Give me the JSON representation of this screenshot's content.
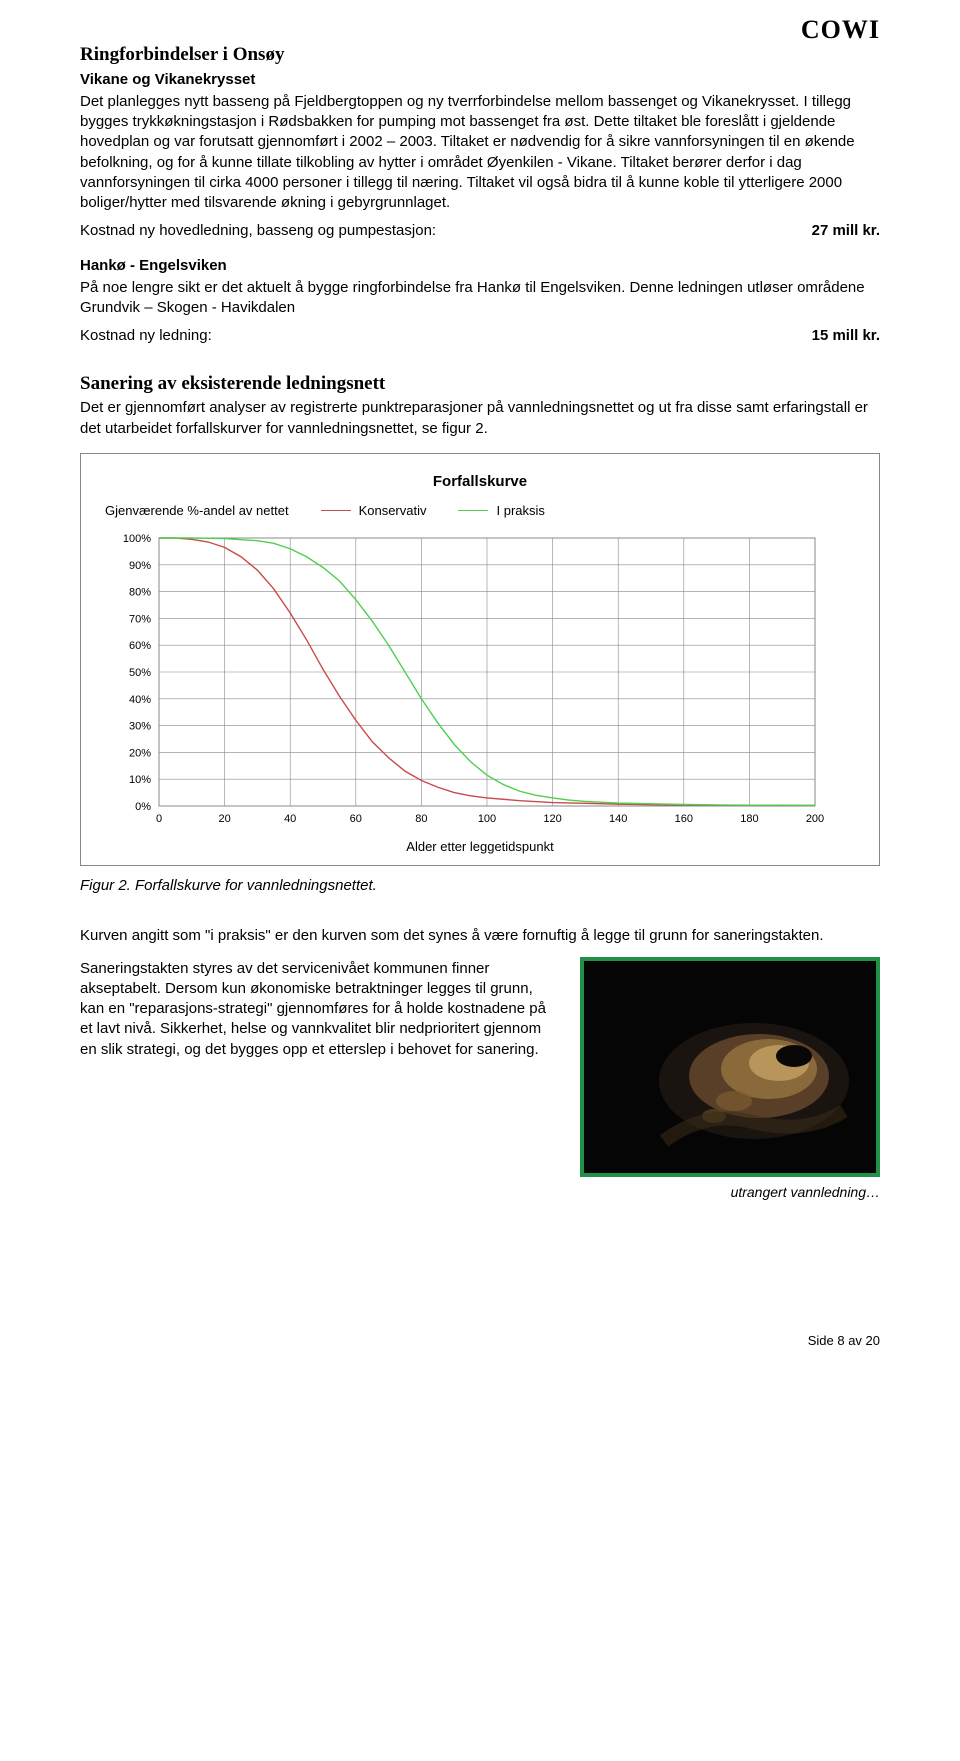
{
  "logo": "COWI",
  "sec1": {
    "title": "Ringforbindelser i Onsøy",
    "subhead": "Vikane og Vikanekrysset",
    "p1": "Det planlegges nytt basseng på Fjeldbergtoppen og ny tverrforbindelse mellom bassenget og Vikanekrysset. I tillegg bygges trykkøkningstasjon i Rødsbakken for pumping mot bassenget fra øst. Dette tiltaket ble foreslått i gjeldende hovedplan og var forutsatt gjennomført i 2002 – 2003. Tiltaket er nødvendig for å sikre vannforsyningen til en økende befolkning, og for å kunne tillate tilkobling av hytter i området Øyenkilen - Vikane. Tiltaket berører derfor i dag vannforsyningen til cirka 4000 personer i tillegg til næring. Tiltaket vil også bidra til å kunne koble til ytterligere 2000 boliger/hytter med tilsvarende økning i gebyrgrunnlaget.",
    "cost_label": "Kostnad ny hovedledning, basseng og pumpestasjon:",
    "cost_value": "27 mill kr."
  },
  "sec2": {
    "subhead": "Hankø - Engelsviken",
    "p1": "På noe lengre sikt er det aktuelt å bygge ringforbindelse fra Hankø til Engelsviken. Denne ledningen utløser områdene Grundvik – Skogen - Havikdalen",
    "cost_label": "Kostnad ny ledning:",
    "cost_value": "15 mill kr."
  },
  "sec3": {
    "title": "Sanering av eksisterende ledningsnett",
    "p1": "Det er gjennomført analyser av registrerte punktreparasjoner på vannledningsnettet og ut fra disse samt erfaringstall er det utarbeidet forfallskurver for vannledningsnettet, se figur 2."
  },
  "chart": {
    "title": "Forfallskurve",
    "y_label": "Gjenværende %-andel av nettet",
    "x_label": "Alder etter leggetidspunkt",
    "legend": [
      "Konservativ",
      "I praksis"
    ],
    "series_colors": [
      "#c94a4a",
      "#4fcf4f"
    ],
    "x_min": 0,
    "x_max": 200,
    "y_min": 0,
    "y_max": 100,
    "x_ticks": [
      0,
      20,
      40,
      60,
      80,
      100,
      120,
      140,
      160,
      180,
      200
    ],
    "y_ticks": [
      "0%",
      "10%",
      "20%",
      "30%",
      "40%",
      "50%",
      "60%",
      "70%",
      "80%",
      "90%",
      "100%"
    ],
    "grid_color": "#888",
    "font_size_ticks": 11,
    "plot_bg": "#ffffff",
    "konservativ_xy": [
      [
        0,
        100
      ],
      [
        5,
        100
      ],
      [
        10,
        99.5
      ],
      [
        15,
        98.5
      ],
      [
        20,
        96.5
      ],
      [
        25,
        93
      ],
      [
        30,
        88
      ],
      [
        35,
        81
      ],
      [
        40,
        72
      ],
      [
        45,
        62
      ],
      [
        50,
        51
      ],
      [
        55,
        41
      ],
      [
        60,
        32
      ],
      [
        65,
        24
      ],
      [
        70,
        18
      ],
      [
        75,
        13
      ],
      [
        80,
        9.5
      ],
      [
        85,
        7
      ],
      [
        90,
        5
      ],
      [
        95,
        3.8
      ],
      [
        100,
        3
      ],
      [
        110,
        2
      ],
      [
        120,
        1.3
      ],
      [
        130,
        1
      ],
      [
        140,
        0.7
      ],
      [
        150,
        0.5
      ],
      [
        160,
        0.4
      ],
      [
        170,
        0.3
      ],
      [
        180,
        0.3
      ],
      [
        190,
        0.2
      ],
      [
        200,
        0.2
      ]
    ],
    "ipraksis_xy": [
      [
        0,
        100
      ],
      [
        10,
        100
      ],
      [
        20,
        99.8
      ],
      [
        30,
        99
      ],
      [
        35,
        98
      ],
      [
        40,
        96
      ],
      [
        45,
        93
      ],
      [
        50,
        89
      ],
      [
        55,
        84
      ],
      [
        60,
        77
      ],
      [
        65,
        69
      ],
      [
        70,
        60
      ],
      [
        75,
        50
      ],
      [
        80,
        40
      ],
      [
        85,
        31
      ],
      [
        90,
        23
      ],
      [
        95,
        16.5
      ],
      [
        100,
        11.5
      ],
      [
        105,
        8
      ],
      [
        110,
        5.5
      ],
      [
        115,
        4
      ],
      [
        120,
        3
      ],
      [
        125,
        2.2
      ],
      [
        130,
        1.7
      ],
      [
        140,
        1.1
      ],
      [
        150,
        0.8
      ],
      [
        160,
        0.6
      ],
      [
        170,
        0.4
      ],
      [
        180,
        0.3
      ],
      [
        190,
        0.3
      ],
      [
        200,
        0.2
      ]
    ]
  },
  "fig_caption": "Figur 2. Forfallskurve for vannledningsnettet.",
  "sec4": {
    "p1": "Kurven angitt som \"i praksis\" er den kurven som det synes å være fornuftig å legge til grunn for saneringstakten.",
    "p2": "Saneringstakten styres av det servicenivået kommunen finner akseptabelt. Dersom kun økonomiske betraktninger legges til grunn, kan en \"reparasjons-strategi\" gjennomføres for å holde kostnadene på et lavt nivå. Sikkerhet, helse og vannkvalitet blir nedprioritert gjennom en slik strategi, og det bygges opp et etterslep i behovet for sanering."
  },
  "photo_caption": "utrangert vannledning…",
  "footer": "Side 8 av 20"
}
